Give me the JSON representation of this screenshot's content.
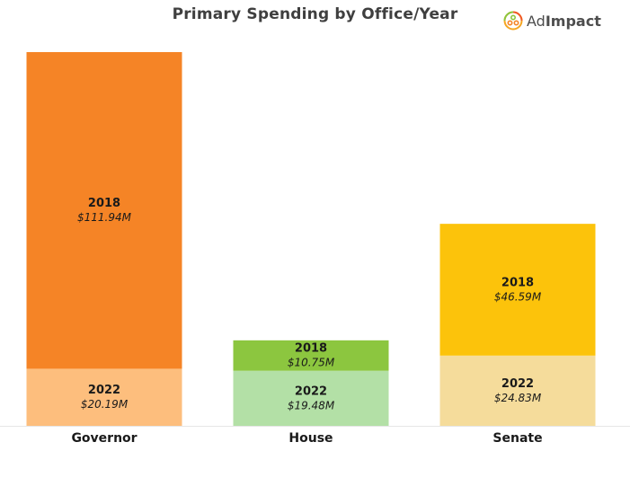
{
  "chart_data": {
    "type": "bar",
    "stacked": true,
    "title": "Primary Spending by Office/Year",
    "categories": [
      "Governor",
      "House",
      "Senate"
    ],
    "series": [
      {
        "label": "2022",
        "values": [
          20.19,
          19.48,
          24.83
        ],
        "value_labels": [
          "$20.19M",
          "$19.48M",
          "$24.83M"
        ]
      },
      {
        "label": "2018",
        "values": [
          111.94,
          10.75,
          46.59
        ],
        "value_labels": [
          "$111.94M",
          "$10.75M",
          "$46.59M"
        ]
      }
    ],
    "colors": {
      "2022": [
        "#fdbe7d",
        "#b3e0a6",
        "#f5dc9b"
      ],
      "2018": [
        "#f58426",
        "#8cc63f",
        "#fcc30b"
      ]
    },
    "ylim": [
      0,
      135
    ],
    "legend": "none",
    "grid": false
  },
  "logo": {
    "ad": "Ad",
    "impact": "Impact"
  }
}
